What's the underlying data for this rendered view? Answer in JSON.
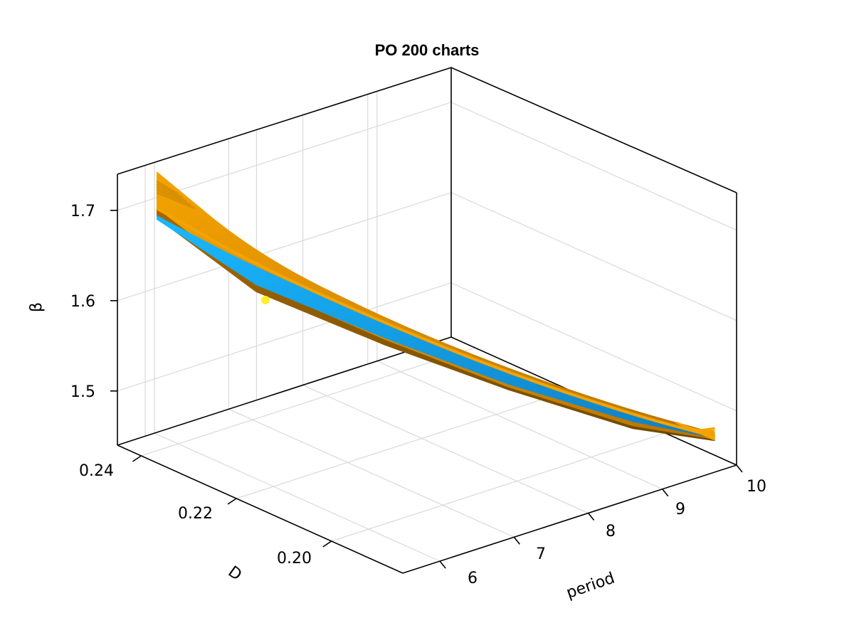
{
  "chart_data": {
    "type": "surface3d",
    "title": "PO 200 charts",
    "axes": {
      "x": {
        "label": "D",
        "ticks": [
          "0.20",
          "0.22",
          "0.24"
        ],
        "range": [
          0.185,
          0.245
        ]
      },
      "y": {
        "label": "period",
        "ticks": [
          "6",
          "7",
          "8",
          "9",
          "10"
        ],
        "range": [
          5.5,
          10
        ]
      },
      "z": {
        "label": "β",
        "ticks": [
          "1.5",
          "1.6",
          "1.7"
        ],
        "range": [
          1.44,
          1.74
        ]
      }
    },
    "grid": true,
    "series": [
      {
        "color": "#f5a300"
      },
      {
        "color": "#14b0f0"
      }
    ],
    "marker": {
      "D": 0.226,
      "period": 6.3,
      "beta": 1.6,
      "color": "#fff02a"
    },
    "surface_points": [
      {
        "D": 0.243,
        "period": 5.9,
        "beta": 1.72
      },
      {
        "D": 0.233,
        "period": 6.6,
        "beta": 1.64
      },
      {
        "D": 0.22,
        "period": 7.5,
        "beta": 1.58
      },
      {
        "D": 0.208,
        "period": 8.4,
        "beta": 1.53
      },
      {
        "D": 0.196,
        "period": 9.3,
        "beta": 1.49
      },
      {
        "D": 0.188,
        "period": 9.9,
        "beta": 1.47
      }
    ]
  }
}
